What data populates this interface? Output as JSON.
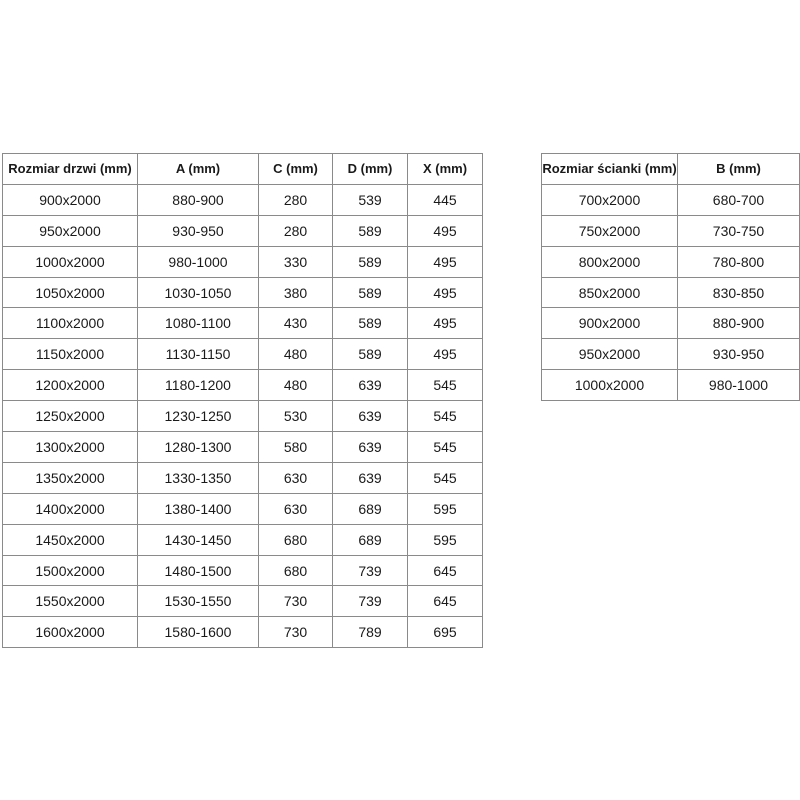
{
  "doors_table": {
    "headers": [
      "Rozmiar drzwi (mm)",
      "A (mm)",
      "C (mm)",
      "D (mm)",
      "X (mm)"
    ],
    "rows": [
      [
        "900x2000",
        "880-900",
        "280",
        "539",
        "445"
      ],
      [
        "950x2000",
        "930-950",
        "280",
        "589",
        "495"
      ],
      [
        "1000x2000",
        "980-1000",
        "330",
        "589",
        "495"
      ],
      [
        "1050x2000",
        "1030-1050",
        "380",
        "589",
        "495"
      ],
      [
        "1100x2000",
        "1080-1100",
        "430",
        "589",
        "495"
      ],
      [
        "1150x2000",
        "1130-1150",
        "480",
        "589",
        "495"
      ],
      [
        "1200x2000",
        "1180-1200",
        "480",
        "639",
        "545"
      ],
      [
        "1250x2000",
        "1230-1250",
        "530",
        "639",
        "545"
      ],
      [
        "1300x2000",
        "1280-1300",
        "580",
        "639",
        "545"
      ],
      [
        "1350x2000",
        "1330-1350",
        "630",
        "639",
        "545"
      ],
      [
        "1400x2000",
        "1380-1400",
        "630",
        "689",
        "595"
      ],
      [
        "1450x2000",
        "1430-1450",
        "680",
        "689",
        "595"
      ],
      [
        "1500x2000",
        "1480-1500",
        "680",
        "739",
        "645"
      ],
      [
        "1550x2000",
        "1530-1550",
        "730",
        "739",
        "645"
      ],
      [
        "1600x2000",
        "1580-1600",
        "730",
        "789",
        "695"
      ]
    ]
  },
  "wall_table": {
    "headers": [
      "Rozmiar ścianki (mm)",
      "B (mm)"
    ],
    "rows": [
      [
        "700x2000",
        "680-700"
      ],
      [
        "750x2000",
        "730-750"
      ],
      [
        "800x2000",
        "780-800"
      ],
      [
        "850x2000",
        "830-850"
      ],
      [
        "900x2000",
        "880-900"
      ],
      [
        "950x2000",
        "930-950"
      ],
      [
        "1000x2000",
        "980-1000"
      ]
    ]
  }
}
